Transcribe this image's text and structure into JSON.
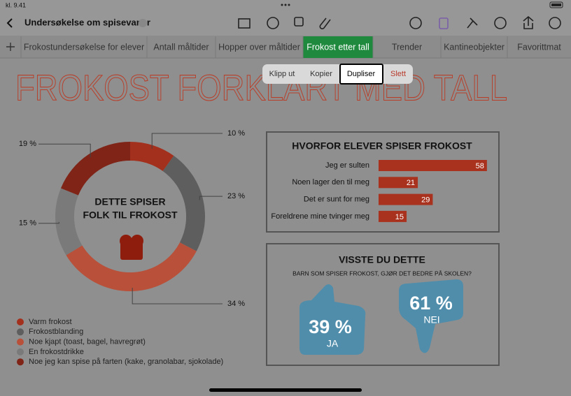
{
  "status_bar": {
    "time": "kl. 9.41"
  },
  "toolbar": {
    "document_title": "Undersøkelse om spisevaner"
  },
  "tabs": [
    {
      "label": "Frokostundersøkelse for elever",
      "selected": false
    },
    {
      "label": "Antall måltider",
      "selected": false
    },
    {
      "label": "Hopper over måltider",
      "selected": false
    },
    {
      "label": "Frokost etter tall",
      "selected": true
    },
    {
      "label": "Trender",
      "selected": false
    },
    {
      "label": "Kantineobjekter",
      "selected": false
    },
    {
      "label": "Favorittmat",
      "selected": false
    }
  ],
  "context_menu": [
    {
      "label": "Klipp ut",
      "highlighted": false,
      "color": "#333333"
    },
    {
      "label": "Kopier",
      "highlighted": false,
      "color": "#333333"
    },
    {
      "label": "Dupliser",
      "highlighted": true,
      "color": "#000000"
    },
    {
      "label": "Slett",
      "highlighted": false,
      "color": "#b8392a"
    }
  ],
  "sheet": {
    "title": "FROKOST FORKLART MED TALL",
    "donut": {
      "center_text": [
        "DETTE SPISER",
        "FOLK TIL FROKOST"
      ],
      "slices": [
        {
          "name": "Varm frokost",
          "value": 10,
          "value_label": "10 %",
          "color": "#a3301d"
        },
        {
          "name": "Frokostblanding",
          "value": 23,
          "value_label": "23 %",
          "color": "#5e5e5e"
        },
        {
          "name": "Noe kjapt (toast, bagel, havregrøt)",
          "value": 34,
          "value_label": "34 %",
          "color": "#b8503a"
        },
        {
          "name": "En frokostdrikke",
          "value": 15,
          "value_label": "15 %",
          "color": "#7a7a7a"
        },
        {
          "name": "Noe jeg kan spise på farten (kake, granolabar, sjokolade)",
          "value": 19,
          "value_label": "19 %",
          "color": "#7f2417"
        }
      ]
    },
    "bar_chart": {
      "title": "HVORFOR ELEVER SPISER FROKOST",
      "categories": [
        "Jeg er sulten",
        "Noen lager den til meg",
        "Det er sunt for meg",
        "Foreldrene mine tvinger meg"
      ],
      "values": [
        58,
        21,
        29,
        15
      ],
      "color": "#a8321e"
    },
    "facts": {
      "title": "VISSTE DU DETTE",
      "subtitle": "BARN SOM SPISER FROKOST, GJØR DET BEDRE PÅ SKOLEN?",
      "yes": {
        "value": "39 %",
        "label": "JA"
      },
      "no": {
        "value": "61 %",
        "label": "NEI"
      }
    }
  }
}
